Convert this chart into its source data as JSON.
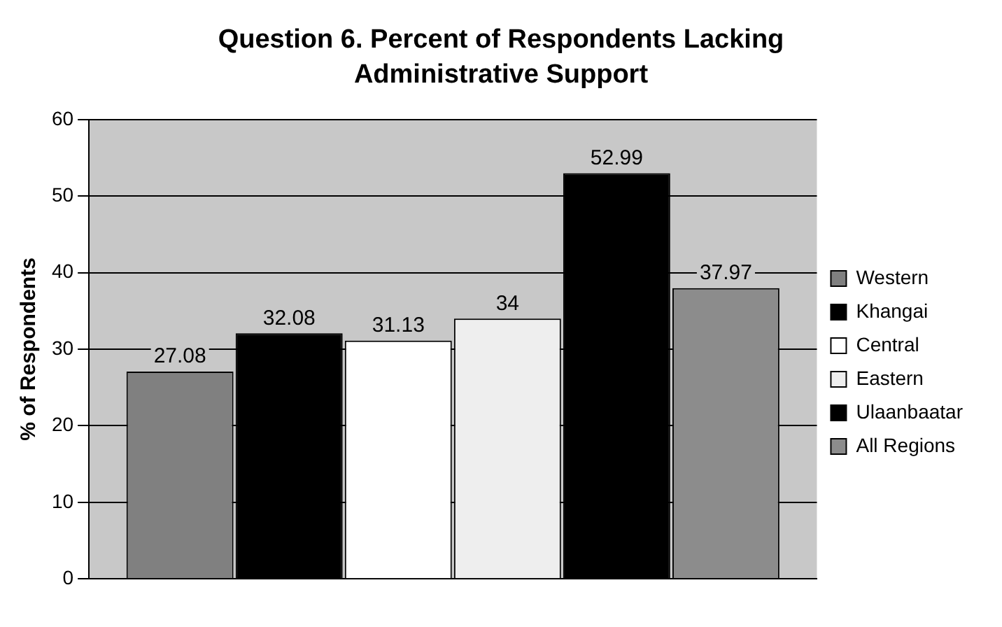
{
  "chart_data": {
    "type": "bar",
    "title": "Question 6. Percent of Respondents Lacking Administrative Support",
    "ylabel": "% of Respondents",
    "categories": [
      null
    ],
    "series": [
      {
        "name": "Western",
        "color": "#808080",
        "values": [
          27.08
        ]
      },
      {
        "name": "Khangai",
        "color": "#000000",
        "values": [
          32.08
        ]
      },
      {
        "name": "Central",
        "color": "#ffffff",
        "values": [
          31.13
        ]
      },
      {
        "name": "Eastern",
        "color": "#eeeeee",
        "values": [
          34
        ]
      },
      {
        "name": "Ulaanbaatar",
        "color": "#000000",
        "values": [
          52.99
        ]
      },
      {
        "name": "All Regions",
        "color": "#8c8c8c",
        "values": [
          37.97
        ]
      }
    ],
    "ylim": [
      0,
      60
    ],
    "yticks": [
      0,
      10,
      20,
      30,
      40,
      50,
      60
    ],
    "grid": "y",
    "legend": "right",
    "data_labels": true
  }
}
